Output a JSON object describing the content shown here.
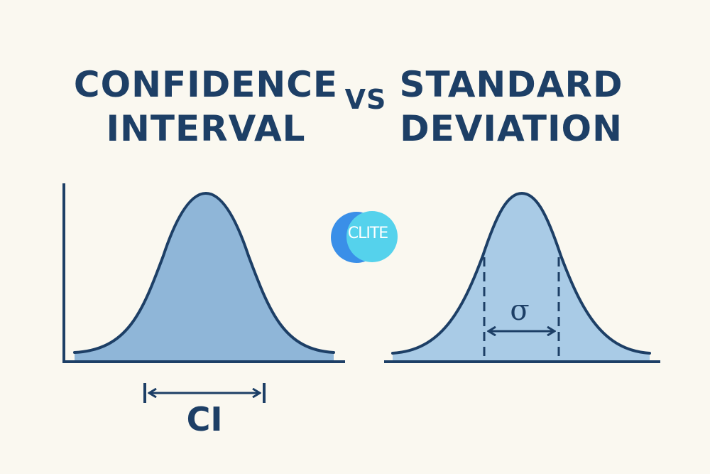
{
  "title_left": {
    "line1": "CONFIDENCE",
    "line2": "INTERVAL"
  },
  "title_right": {
    "line1": "STANDARD",
    "line2": "DEVIATION"
  },
  "vs_label": "VS",
  "logo_text": "CLITE",
  "left_curve_label": "CI",
  "right_curve_label": "σ",
  "colors": {
    "background": "#faf8f0",
    "ink": "#1d3f66",
    "left_fill": "#8fb6d8",
    "right_fill": "#a9cbe6",
    "logo_blue": "#3a8fe8",
    "logo_cyan": "#55d2ec"
  }
}
